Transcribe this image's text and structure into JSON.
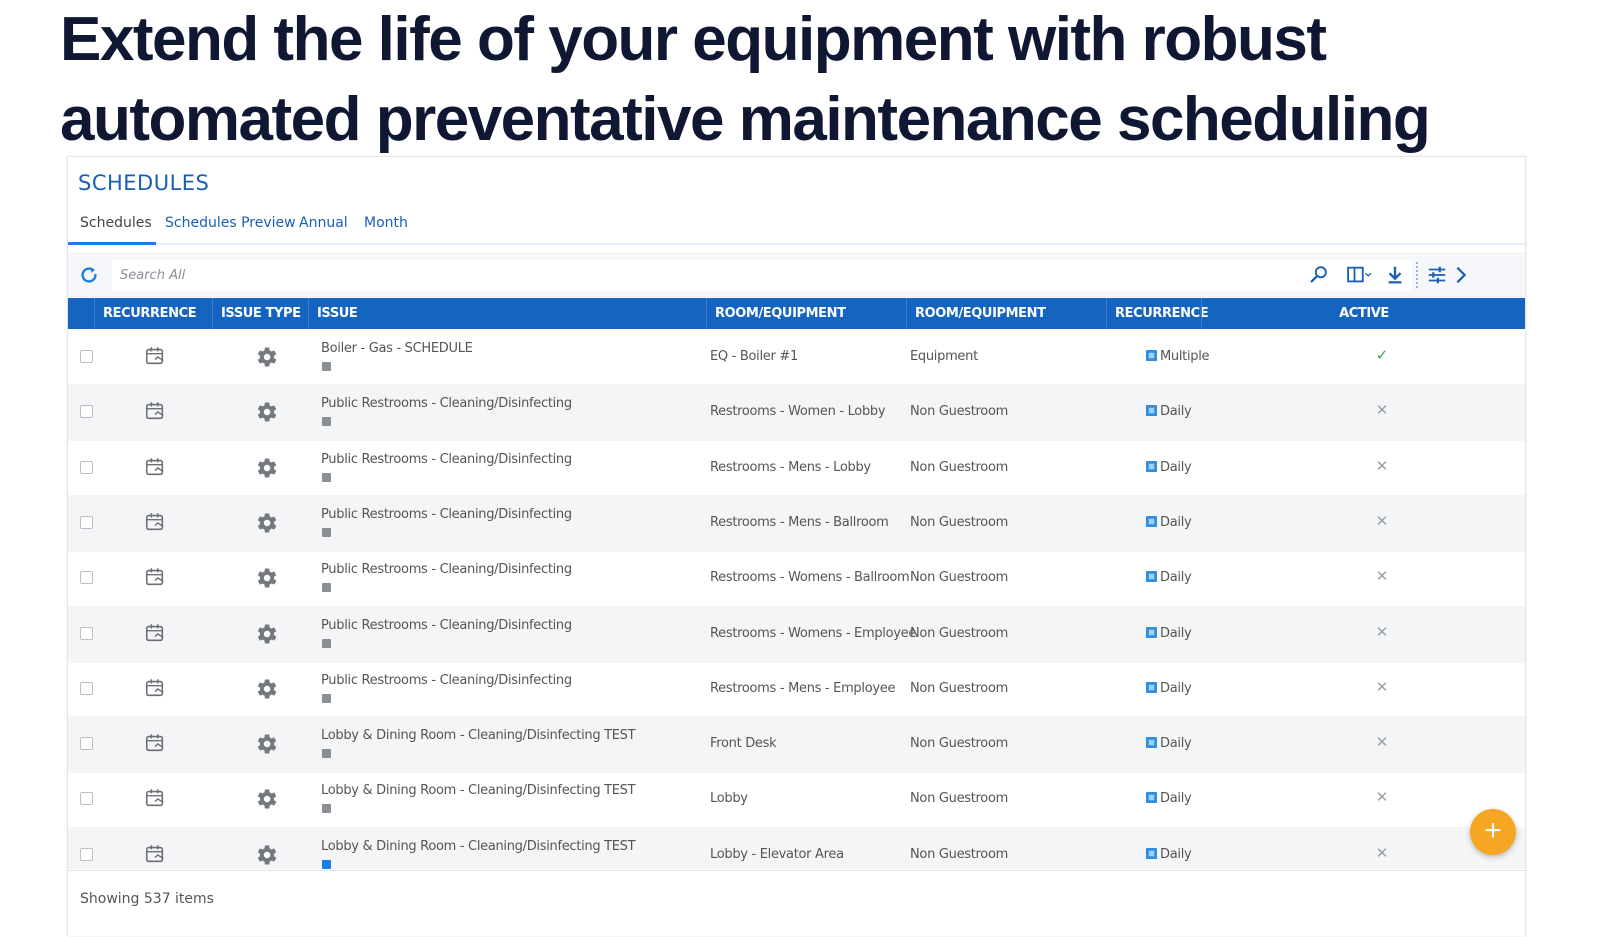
{
  "headline": {
    "line1": "Extend the life of your equipment with robust",
    "line2": "automated preventative maintenance scheduling"
  },
  "panel": {
    "title": "SCHEDULES",
    "tabs": [
      {
        "label": "Schedules",
        "active": true
      },
      {
        "label": "Schedules Preview",
        "active": false
      },
      {
        "label": "Annual",
        "active": false
      },
      {
        "label": "Month",
        "active": false
      }
    ]
  },
  "toolbar": {
    "search_placeholder": "Search All",
    "icons": [
      "refresh-icon",
      "search-icon",
      "columns-icon",
      "download-icon",
      "filter-settings-icon",
      "chevron-right-icon"
    ]
  },
  "table": {
    "headers": [
      "RECURRENCE TYPE",
      "ISSUE TYPE",
      "ISSUE",
      "ROOM/EQUIPMENT",
      "ROOM/EQUIPMENT CATEGORY",
      "RECURRENCE",
      "ACTIVE"
    ],
    "rows": [
      {
        "issue": "Boiler - Gas - SCHEDULE",
        "room": "EQ - Boiler #1",
        "category": "Equipment",
        "recurrence": "Multiple",
        "active": true
      },
      {
        "issue": "Public Restrooms - Cleaning/Disinfecting",
        "room": "Restrooms - Women - Lobby",
        "category": "Non Guestroom",
        "recurrence": "Daily",
        "active": false
      },
      {
        "issue": "Public Restrooms - Cleaning/Disinfecting",
        "room": "Restrooms - Mens - Lobby",
        "category": "Non Guestroom",
        "recurrence": "Daily",
        "active": false
      },
      {
        "issue": "Public Restrooms - Cleaning/Disinfecting",
        "room": "Restrooms - Mens - Ballroom",
        "category": "Non Guestroom",
        "recurrence": "Daily",
        "active": false
      },
      {
        "issue": "Public Restrooms - Cleaning/Disinfecting",
        "room": "Restrooms - Womens - Ballroom",
        "category": "Non Guestroom",
        "recurrence": "Daily",
        "active": false
      },
      {
        "issue": "Public Restrooms - Cleaning/Disinfecting",
        "room": "Restrooms - Womens - Employee",
        "category": "Non Guestroom",
        "recurrence": "Daily",
        "active": false
      },
      {
        "issue": "Public Restrooms - Cleaning/Disinfecting",
        "room": "Restrooms - Mens - Employee",
        "category": "Non Guestroom",
        "recurrence": "Daily",
        "active": false
      },
      {
        "issue": "Lobby & Dining Room - Cleaning/Disinfecting TEST",
        "room": "Front Desk",
        "category": "Non Guestroom",
        "recurrence": "Daily",
        "active": false
      },
      {
        "issue": "Lobby & Dining Room - Cleaning/Disinfecting TEST",
        "room": "Lobby",
        "category": "Non Guestroom",
        "recurrence": "Daily",
        "active": false
      },
      {
        "issue": "Lobby & Dining Room - Cleaning/Disinfecting TEST",
        "room": "Lobby - Elevator Area",
        "category": "Non Guestroom",
        "recurrence": "Daily",
        "active": false
      }
    ]
  },
  "footer": {
    "showing": "Showing 537 items"
  },
  "fab": {
    "label": "+"
  },
  "colors": {
    "headline": "#0f1733",
    "accent": "#1565c0",
    "link": "#1a5fb4",
    "fab": "#f5a623",
    "active_check": "#3aa35a"
  }
}
